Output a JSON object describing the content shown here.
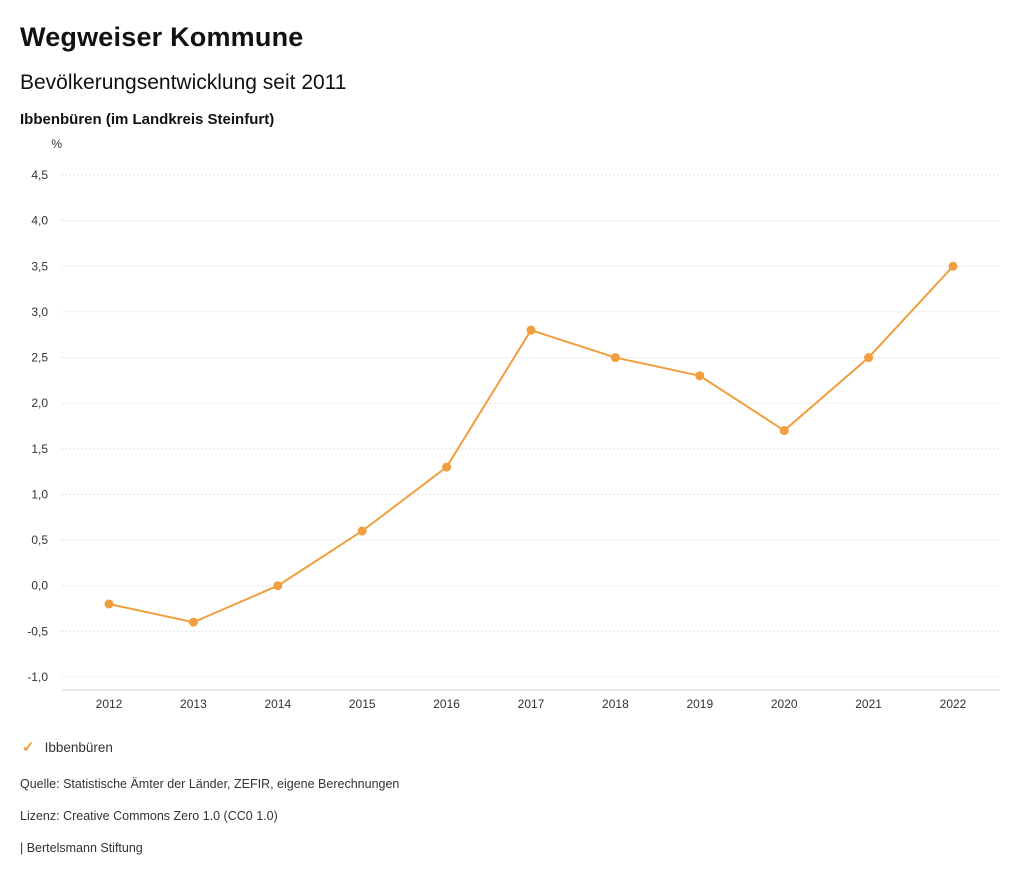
{
  "header": {
    "title": "Wegweiser Kommune",
    "subtitle": "Bevölkerungsentwicklung seit 2011",
    "location": "Ibbenbüren (im Landkreis Steinfurt)"
  },
  "chart_data": {
    "type": "line",
    "title": "Bevölkerungsentwicklung seit 2011",
    "unit_label": "%",
    "x": [
      "2012",
      "2013",
      "2014",
      "2015",
      "2016",
      "2017",
      "2018",
      "2019",
      "2020",
      "2021",
      "2022"
    ],
    "series": [
      {
        "name": "Ibbenbüren",
        "values": [
          -0.2,
          -0.4,
          0.0,
          0.6,
          1.3,
          2.8,
          2.5,
          2.3,
          1.7,
          2.5,
          3.5
        ],
        "color": "#f09e3e"
      }
    ],
    "ylim": [
      -1.0,
      4.5
    ],
    "y_tick_step": 0.5,
    "y_tick_labels": [
      "4,5",
      "4,0",
      "3,5",
      "3,0",
      "2,5",
      "2,0",
      "1,5",
      "1,0",
      "0,5",
      "0,0",
      "-0,5",
      "-1,0"
    ],
    "xlabel": "",
    "ylabel": "%",
    "grid": "dotted-horizontal",
    "legend_position": "bottom-left",
    "gridline_color": "#c8c8c8",
    "axis_color": "#d6d6d6"
  },
  "legend": {
    "items": [
      {
        "label": "Ibbenbüren",
        "color": "#f09e3e",
        "icon": "check"
      }
    ]
  },
  "footer": {
    "source": "Quelle: Statistische Ämter der Länder, ZEFIR, eigene Berechnungen",
    "license": "Lizenz: Creative Commons Zero 1.0 (CC0 1.0)",
    "attribution": "| Bertelsmann Stiftung"
  }
}
